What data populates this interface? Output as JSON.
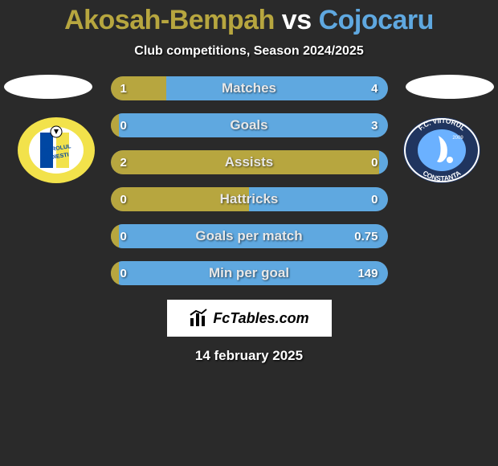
{
  "title_left": "Akosah-Bempah",
  "title_vs": " vs ",
  "title_right": "Cojocaru",
  "title_color_left": "#b7a63f",
  "title_color_right": "#5fa8e0",
  "subtitle": "Club competitions, Season 2024/2025",
  "background": "#2a2a2a",
  "bar_bg": "#6b6b6b",
  "fill_color_left": "#b7a63f",
  "fill_color_right": "#5fa8e0",
  "stats": [
    {
      "label": "Matches",
      "left_val": "1",
      "right_val": "4",
      "left_pct": 20,
      "right_pct": 80
    },
    {
      "label": "Goals",
      "left_val": "0",
      "right_val": "3",
      "left_pct": 3,
      "right_pct": 97
    },
    {
      "label": "Assists",
      "left_val": "2",
      "right_val": "0",
      "left_pct": 97,
      "right_pct": 3
    },
    {
      "label": "Hattricks",
      "left_val": "0",
      "right_val": "0",
      "left_pct": 50,
      "right_pct": 50
    },
    {
      "label": "Goals per match",
      "left_val": "0",
      "right_val": "0.75",
      "left_pct": 3,
      "right_pct": 97
    },
    {
      "label": "Min per goal",
      "left_val": "0",
      "right_val": "149",
      "left_pct": 3,
      "right_pct": 97
    }
  ],
  "badges": {
    "left": {
      "outer": "#f2e24b",
      "inner": "#ffffff",
      "stripe1": "#0047a3",
      "stripe2": "#f2e24b",
      "text1": "PETROLUL",
      "text2": "PLOIESTI"
    },
    "right": {
      "outer": "#20355f",
      "ring": "#ffffff",
      "accent": "#6bb1ff",
      "text_top": "F.C. VIITORUL",
      "text_bottom": "CONSTANTA",
      "year": "2009"
    }
  },
  "footer_brand": "FcTables.com",
  "date": "14 february 2025"
}
